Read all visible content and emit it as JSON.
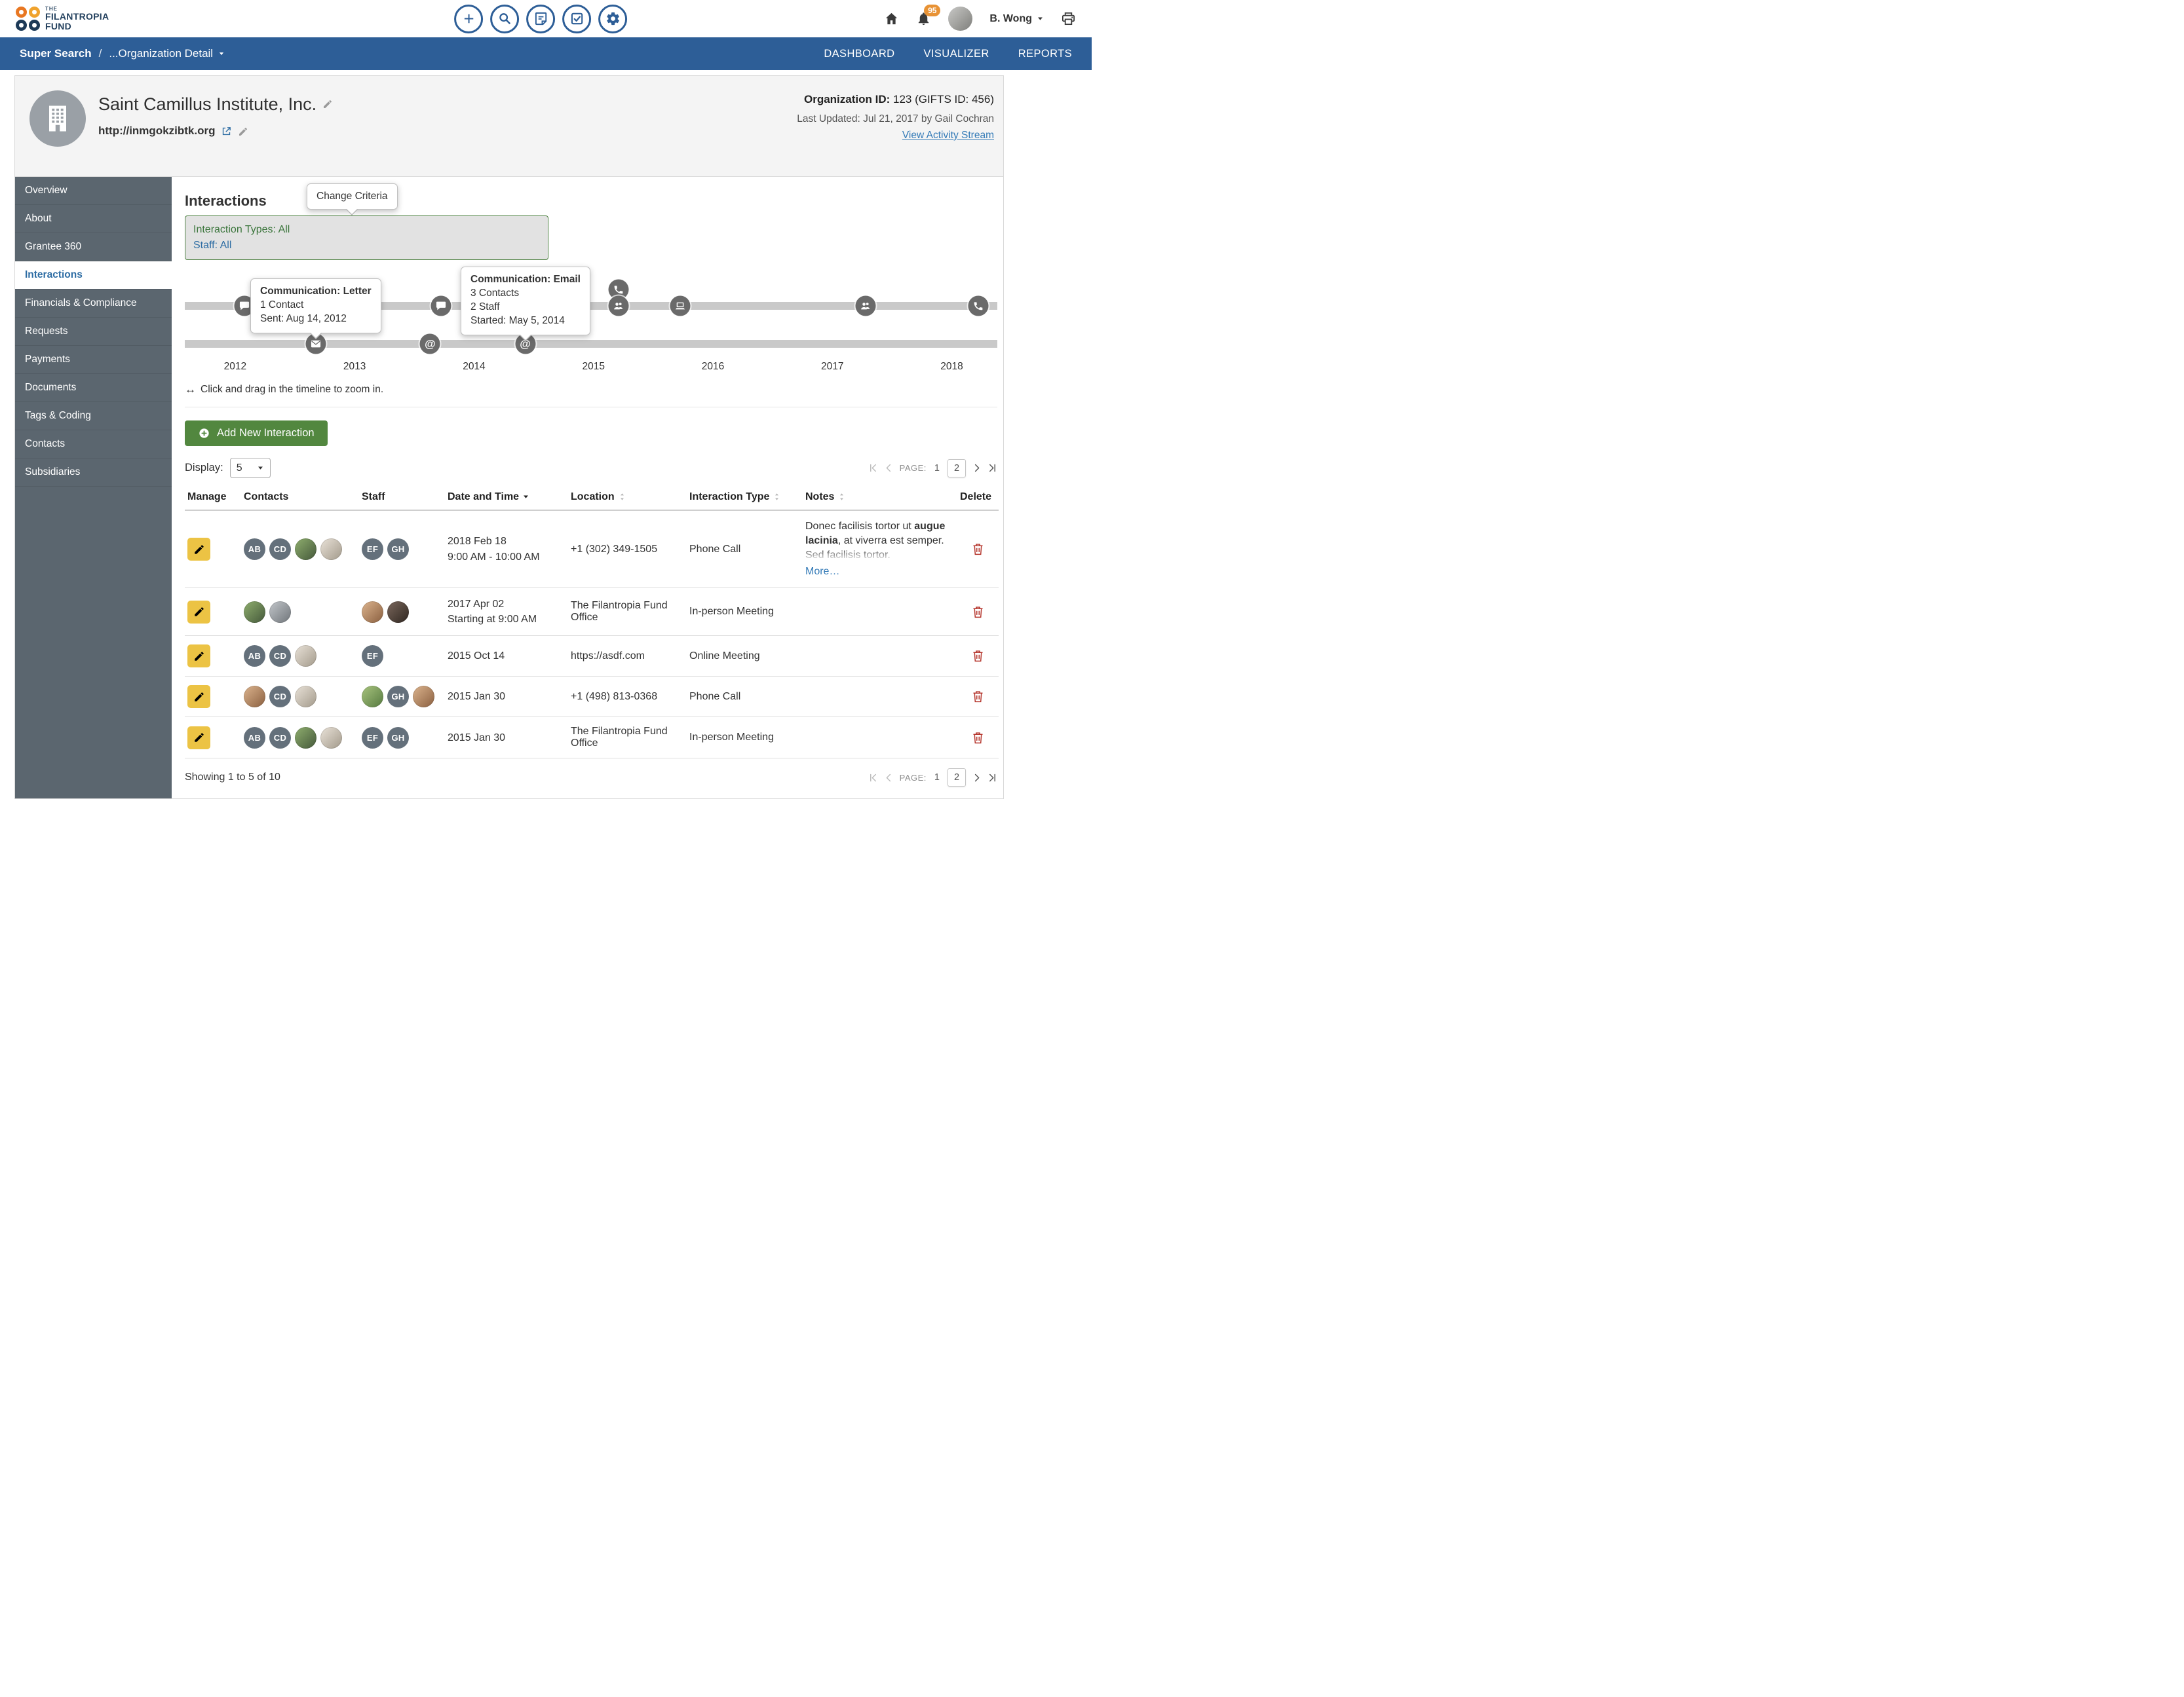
{
  "header": {
    "logo_line1": "THE",
    "logo_line2": "FILANTROPIA",
    "logo_line3": "FUND",
    "notification_count": "95",
    "user_name": "B. Wong"
  },
  "nav": {
    "breadcrumb_primary": "Super Search",
    "breadcrumb_divider": "/",
    "breadcrumb_current": "...Organization Detail",
    "link_dashboard": "DASHBOARD",
    "link_visualizer": "VISUALIZER",
    "link_reports": "REPORTS"
  },
  "org": {
    "name": "Saint Camillus Institute, Inc.",
    "url": "http://inmgokzibtk.org",
    "id_label": "Organization ID:",
    "id_value": " 123 (GIFTS ID: 456)",
    "last_updated": "Last Updated: Jul 21, 2017 by Gail Cochran",
    "activity_link": "View Activity Stream"
  },
  "sidebar": {
    "items": [
      {
        "label": "Overview"
      },
      {
        "label": "About"
      },
      {
        "label": "Grantee 360"
      },
      {
        "label": "Interactions"
      },
      {
        "label": "Financials & Compliance"
      },
      {
        "label": "Requests"
      },
      {
        "label": "Payments"
      },
      {
        "label": "Documents"
      },
      {
        "label": "Tags & Coding"
      },
      {
        "label": "Contacts"
      },
      {
        "label": "Subsidiaries"
      }
    ]
  },
  "main": {
    "title": "Interactions",
    "change_criteria_tooltip": "Change Criteria",
    "criteria": {
      "types": "Interaction Types: All",
      "staff": "Staff: All"
    },
    "timeline": {
      "years": [
        {
          "label": "2012",
          "x": 6.2
        },
        {
          "label": "2013",
          "x": 20.9
        },
        {
          "label": "2014",
          "x": 35.6
        },
        {
          "label": "2015",
          "x": 50.3
        },
        {
          "label": "2016",
          "x": 65.0
        },
        {
          "label": "2017",
          "x": 79.7
        },
        {
          "label": "2018",
          "x": 94.4
        }
      ],
      "icons": [
        {
          "icon": "chat",
          "row": "top",
          "x": 7.3
        },
        {
          "icon": "chat",
          "row": "top",
          "x": 31.5
        },
        {
          "icon": "phone",
          "row": "top",
          "x": 53.4,
          "raised": true
        },
        {
          "icon": "users",
          "row": "top",
          "x": 53.4
        },
        {
          "icon": "laptop",
          "row": "top",
          "x": 61.0
        },
        {
          "icon": "users",
          "row": "top",
          "x": 83.8
        },
        {
          "icon": "phone",
          "row": "top",
          "x": 97.7
        },
        {
          "icon": "envelope",
          "row": "bottom",
          "x": 16.1
        },
        {
          "icon": "at",
          "row": "bottom",
          "x": 30.2
        },
        {
          "icon": "at",
          "row": "bottom",
          "x": 41.9
        }
      ],
      "tooltip_letter": {
        "title": "Communication: Letter",
        "line1": "1 Contact",
        "line2": "Sent: Aug 14, 2012"
      },
      "tooltip_email": {
        "title": "Communication: Email",
        "line1": "3 Contacts",
        "line2": "2 Staff",
        "line3": "Started: May 5, 2014"
      },
      "hint_arrow": "↔",
      "hint": "Click and drag in the timeline to zoom in."
    },
    "add_button": "Add New Interaction",
    "display_label": "Display:",
    "display_value": "5",
    "pager": {
      "label": "PAGE:",
      "page1": "1",
      "page2": "2"
    },
    "table": {
      "headers": {
        "manage": "Manage",
        "contacts": "Contacts",
        "staff": "Staff",
        "date": "Date and Time",
        "location": "Location",
        "type": "Interaction Type",
        "notes": "Notes",
        "delete": "Delete"
      },
      "rows": [
        {
          "contacts": [
            {
              "kind": "initials",
              "text": "AB"
            },
            {
              "kind": "initials",
              "text": "CD"
            },
            {
              "kind": "photo",
              "variant": 1
            },
            {
              "kind": "photo",
              "variant": 2
            }
          ],
          "staff": [
            {
              "kind": "initials",
              "text": "EF"
            },
            {
              "kind": "initials",
              "text": "GH"
            }
          ],
          "date1": "2018 Feb 18",
          "date2": "9:00 AM - 10:00 AM",
          "location": "+1 (302) 349-1505",
          "type": "Phone Call",
          "notes_pre": "Donec facilisis tortor ut ",
          "notes_bold": "augue lacinia",
          "notes_post": ", at viverra est semper. Sed facilisis tortor.",
          "notes_more": "More…"
        },
        {
          "contacts": [
            {
              "kind": "photo",
              "variant": 1
            },
            {
              "kind": "photo",
              "variant": 3
            }
          ],
          "staff": [
            {
              "kind": "photo",
              "variant": 5
            },
            {
              "kind": "photo",
              "variant": 4
            }
          ],
          "date1": "2017 Apr 02",
          "date2": "Starting at 9:00 AM",
          "location": "The Filantropia Fund Office",
          "type": "In-person Meeting"
        },
        {
          "contacts": [
            {
              "kind": "initials",
              "text": "AB"
            },
            {
              "kind": "initials",
              "text": "CD"
            },
            {
              "kind": "photo",
              "variant": 2
            }
          ],
          "staff": [
            {
              "kind": "initials",
              "text": "EF"
            }
          ],
          "date1": "2015 Oct 14",
          "location": "https://asdf.com",
          "type": "Online Meeting"
        },
        {
          "contacts": [
            {
              "kind": "photo",
              "variant": 5
            },
            {
              "kind": "initials",
              "text": "CD"
            },
            {
              "kind": "photo",
              "variant": 2
            }
          ],
          "staff": [
            {
              "kind": "photo",
              "variant": 6
            },
            {
              "kind": "initials",
              "text": "GH"
            },
            {
              "kind": "photo",
              "variant": 5
            }
          ],
          "date1": "2015 Jan 30",
          "location": "+1 (498) 813-0368",
          "type": "Phone Call"
        },
        {
          "contacts": [
            {
              "kind": "initials",
              "text": "AB"
            },
            {
              "kind": "initials",
              "text": "CD"
            },
            {
              "kind": "photo",
              "variant": 1
            },
            {
              "kind": "photo",
              "variant": 2
            }
          ],
          "staff": [
            {
              "kind": "initials",
              "text": "EF"
            },
            {
              "kind": "initials",
              "text": "GH"
            }
          ],
          "date1": "2015 Jan 30",
          "location": "The Filantropia Fund Office",
          "type": "In-person Meeting"
        }
      ],
      "showing": "Showing 1 to 5 of 10"
    }
  },
  "colors": {
    "nav_blue": "#2d5e97",
    "link_blue": "#337ab7",
    "button_green": "#52873f",
    "sidebar_gray": "#5b666f",
    "badge_orange": "#e89234",
    "edit_yellow": "#ecc344",
    "delete_red": "#b5352c"
  }
}
